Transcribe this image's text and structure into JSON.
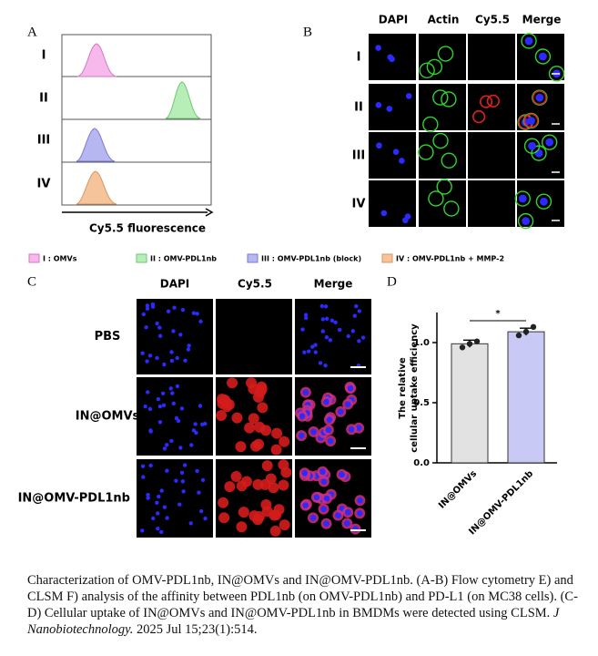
{
  "panel_a": {
    "label": "A",
    "rows": [
      "I",
      "II",
      "III",
      "IV"
    ],
    "xlabel": "Cy5.5 fluorescence"
  },
  "panel_b": {
    "label": "B",
    "columns": [
      "DAPI",
      "Actin",
      "Cy5.5",
      "Merge"
    ],
    "rows": [
      "I",
      "II",
      "III",
      "IV"
    ]
  },
  "legend": [
    "I : OMVs",
    "II : OMV-PDL1nb",
    "III : OMV-PDL1nb (block)",
    "IV : OMV-PDL1nb + MMP-2"
  ],
  "panel_c": {
    "label": "C",
    "columns": [
      "DAPI",
      "Cy5.5",
      "Merge"
    ],
    "rows": [
      "PBS",
      "IN@OMVs",
      "IN@OMV-PDL1nb"
    ]
  },
  "panel_d_label": "D",
  "chart_data": {
    "type": "bar",
    "categories": [
      "IN@OMVs",
      "IN@OMV-PDL1nb"
    ],
    "values": [
      0.99,
      1.09
    ],
    "errors": [
      0.03,
      0.03
    ],
    "points": [
      [
        0.96,
        0.99,
        1.01
      ],
      [
        1.06,
        1.09,
        1.13
      ]
    ],
    "colors": [
      "#e2e2e2",
      "#c9c9f6"
    ],
    "ylabel": [
      "The relative",
      "cellular uptake efficiency"
    ],
    "annotation": "*",
    "ylim": [
      0,
      1.25
    ],
    "yticks": [
      {
        "value": 0,
        "label": "0.0"
      },
      {
        "value": 0.5,
        "label": "0.5"
      },
      {
        "value": 1,
        "label": "1.0"
      }
    ]
  },
  "caption": {
    "text": "Characterization of OMV-PDL1nb, IN@OMVs and IN@OMV-PDL1nb. (A-B) Flow cytometry E) and CLSM F) analysis of the affinity between PDL1nb (on OMV-PDL1nb) and PD-L1 (on MC38 cells). (C-D) Cellular uptake of IN@OMVs and IN@OMV-PDL1nb in BMDMs were detected using CLSM.",
    "journal": "J Nanobiotechnology.",
    "citation": "2025 Jul 15;23(1):514."
  }
}
